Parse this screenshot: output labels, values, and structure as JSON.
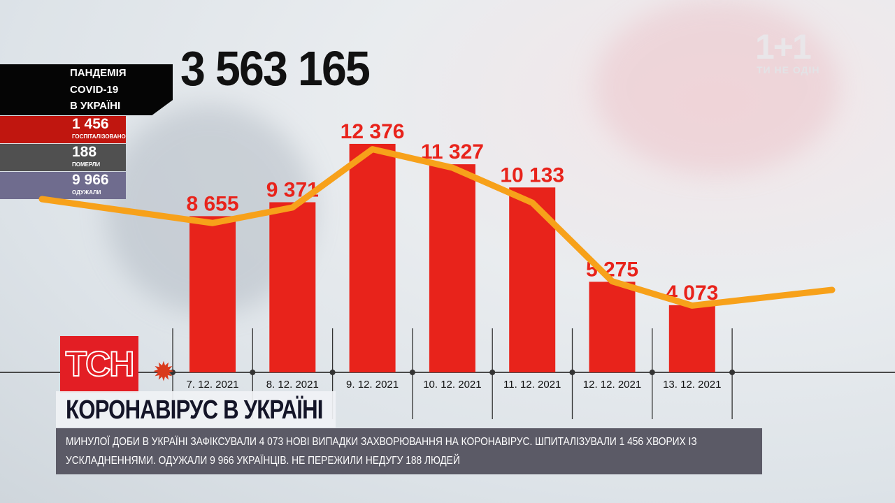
{
  "brand": {
    "channel_logo": "1+1",
    "channel_slogan": "ТИ НЕ ОДІН",
    "news_logo": "ТСН"
  },
  "total": "3 563 165",
  "panel": {
    "title_lines": [
      "ПАНДЕМІЯ",
      "COVID-19",
      "В УКРАЇНІ"
    ],
    "stats": [
      {
        "value": "1 456",
        "label": "ГОСПІТАЛІЗОВАНО",
        "color": "#c0160f"
      },
      {
        "value": "188",
        "label": "ПОМЕРЛИ",
        "color": "#505050"
      },
      {
        "value": "9 966",
        "label": "ОДУЖАЛИ",
        "color": "#6f6c8e"
      }
    ]
  },
  "headline": "КОРОНАВІРУС В УКРАЇНІ",
  "ticker": "МИНУЛОЇ ДОБИ В УКРАЇНІ ЗАФІКСУВАЛИ 4 073 НОВІ ВИПАДКИ ЗАХВОРЮВАННЯ НА КОРОНАВІРУС. ШПИТАЛІЗУВАЛИ 1 456 ХВОРИХ ІЗ УСКЛАДНЕННЯМИ. ОДУЖАЛИ 9 966 УКРАЇНЦІВ. НЕ ПЕРЕЖИЛИ НЕДУГУ 188 ЛЮДЕЙ",
  "chart_data": {
    "type": "bar",
    "categories": [
      "7. 12. 2021",
      "8. 12. 2021",
      "9. 12. 2021",
      "10. 12. 2021",
      "11. 12. 2021",
      "12. 12. 2021",
      "13. 12. 2021"
    ],
    "values": [
      8655,
      9371,
      12376,
      11327,
      10133,
      5275,
      4073
    ],
    "value_labels": [
      "8 655",
      "9 371",
      "12 376",
      "11 327",
      "10 133",
      "5 275",
      "4 073"
    ],
    "trend_line": [
      8300,
      9100,
      12100,
      11150,
      9350,
      5300,
      4050
    ],
    "colors": {
      "bars": "#e8231b",
      "labels": "#e8231b",
      "trend": "#f7a11a"
    },
    "grid": false
  }
}
